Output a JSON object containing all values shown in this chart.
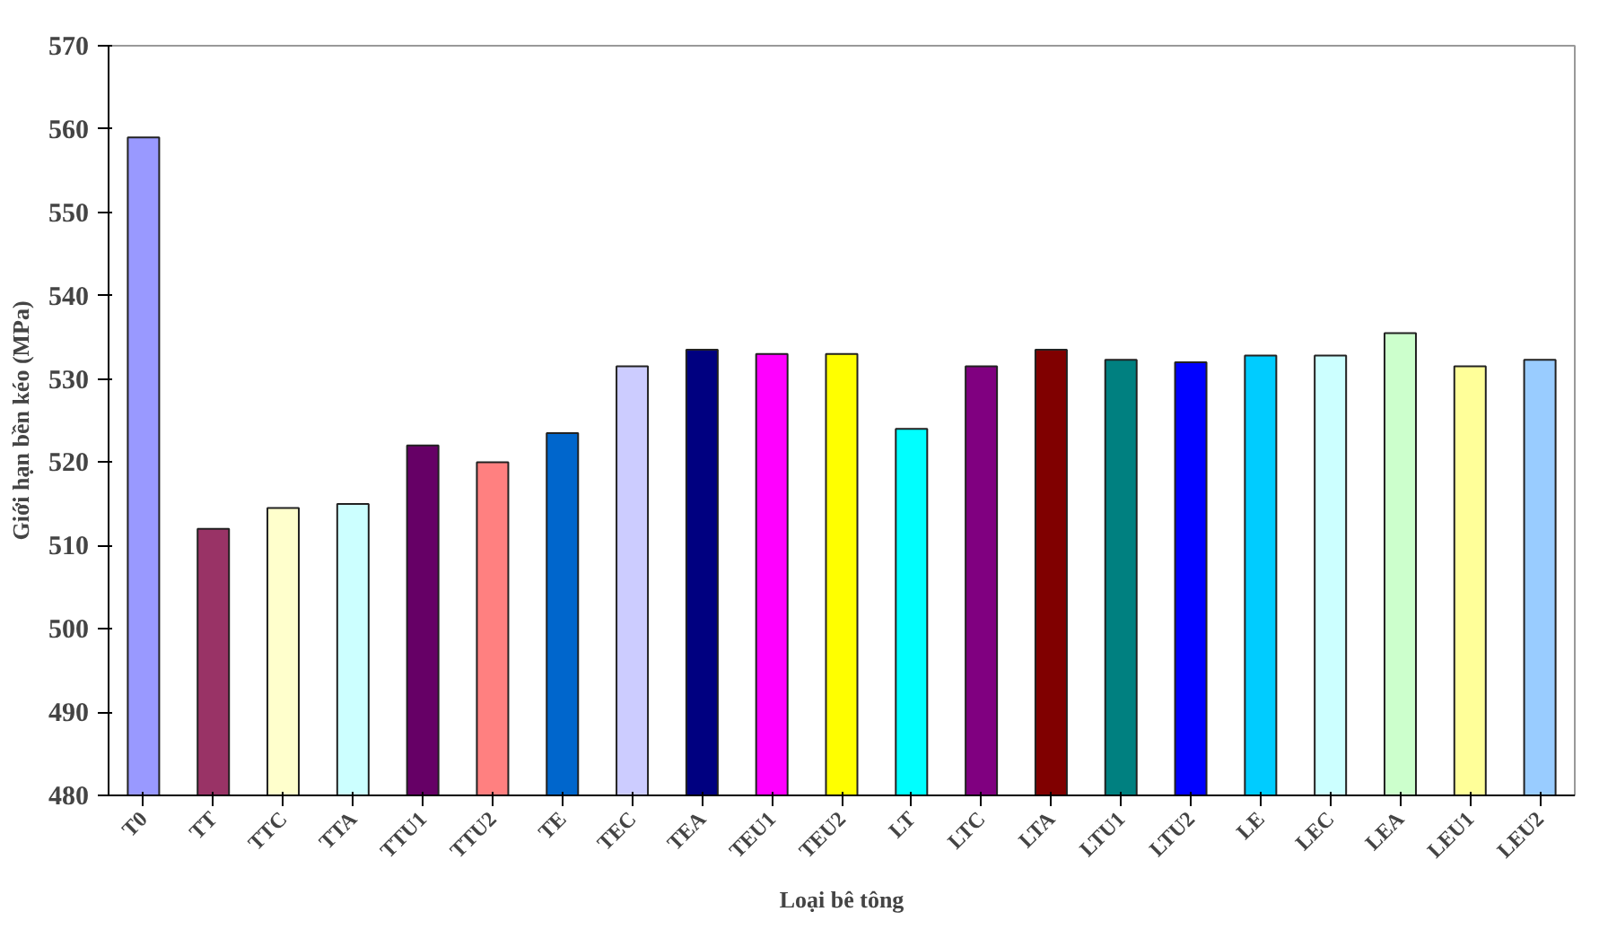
{
  "chart_data": {
    "type": "bar",
    "xlabel": "Loại bê tông",
    "ylabel": "Giới hạn bền kéo (MPa)",
    "categories": [
      "T0",
      "TT",
      "TTC",
      "TTA",
      "TTU1",
      "TTU2",
      "TE",
      "TEC",
      "TEA",
      "TEU1",
      "TEU2",
      "LT",
      "LTC",
      "LTA",
      "LTU1",
      "LTU2",
      "LE",
      "LEC",
      "LEA",
      "LEU1",
      "LEU2"
    ],
    "values": [
      559,
      512,
      514.5,
      515,
      522,
      520,
      523.5,
      531.5,
      533.5,
      533,
      533,
      524,
      531.5,
      533.5,
      532.3,
      532,
      532.8,
      532.8,
      535.5,
      531.5,
      532.3
    ],
    "colors": [
      "#9999ff",
      "#993366",
      "#ffffcc",
      "#ccffff",
      "#660066",
      "#ff8080",
      "#0066cc",
      "#ccccff",
      "#000080",
      "#ff00ff",
      "#ffff00",
      "#00ffff",
      "#800080",
      "#800000",
      "#008080",
      "#0000ff",
      "#00ccff",
      "#ccffff",
      "#ccffcc",
      "#ffff99",
      "#99ccff"
    ],
    "ylim": [
      480,
      570
    ],
    "yticks": [
      480,
      490,
      500,
      510,
      520,
      530,
      540,
      550,
      560,
      570
    ],
    "grid": false
  }
}
